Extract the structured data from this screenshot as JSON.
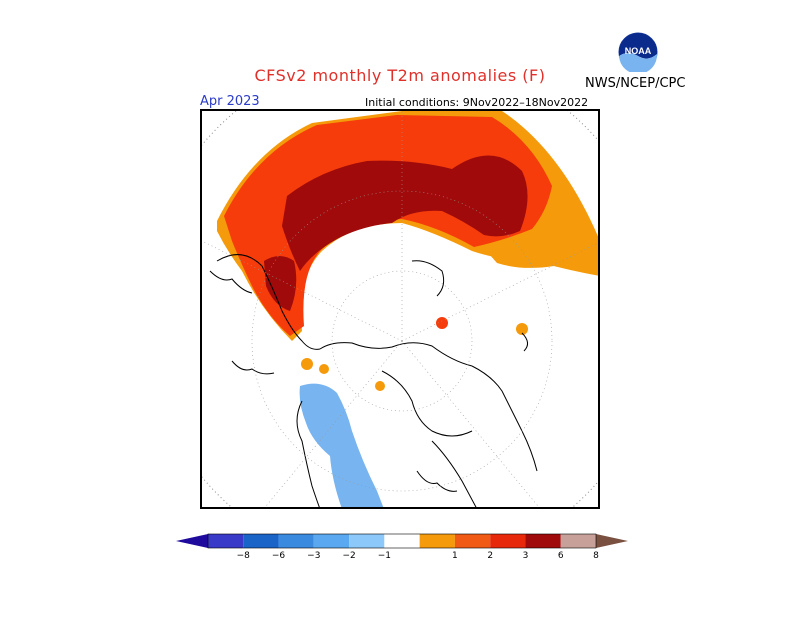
{
  "header": {
    "title": "CFSv2 monthly T2m anomalies (F)",
    "organization": "NWS/NCEP/CPC",
    "logo_text": "NOAA",
    "period": "Apr 2023",
    "initial_conditions": "Initial conditions: 9Nov2022–18Nov2022"
  },
  "colorbar": {
    "labels": [
      "−8",
      "−6",
      "−3",
      "−2",
      "−1",
      "1",
      "2",
      "3",
      "6",
      "8"
    ],
    "colors": [
      "#1f0a9e",
      "#3a3ac8",
      "#1a64c8",
      "#3a8ae0",
      "#5aa8f0",
      "#8cc8fa",
      "#ffffff",
      "#f59a0a",
      "#f05a14",
      "#e8280a",
      "#a00a0a",
      "#c8a09a",
      "#7a5040"
    ]
  },
  "map": {
    "projection": "north-polar-stereographic",
    "colors": {
      "warm_1_2": "#f59a0a",
      "warm_2_3": "#f53c0a",
      "warm_3_6": "#a00a0a",
      "cold_1_2": "#78b4f0"
    }
  }
}
